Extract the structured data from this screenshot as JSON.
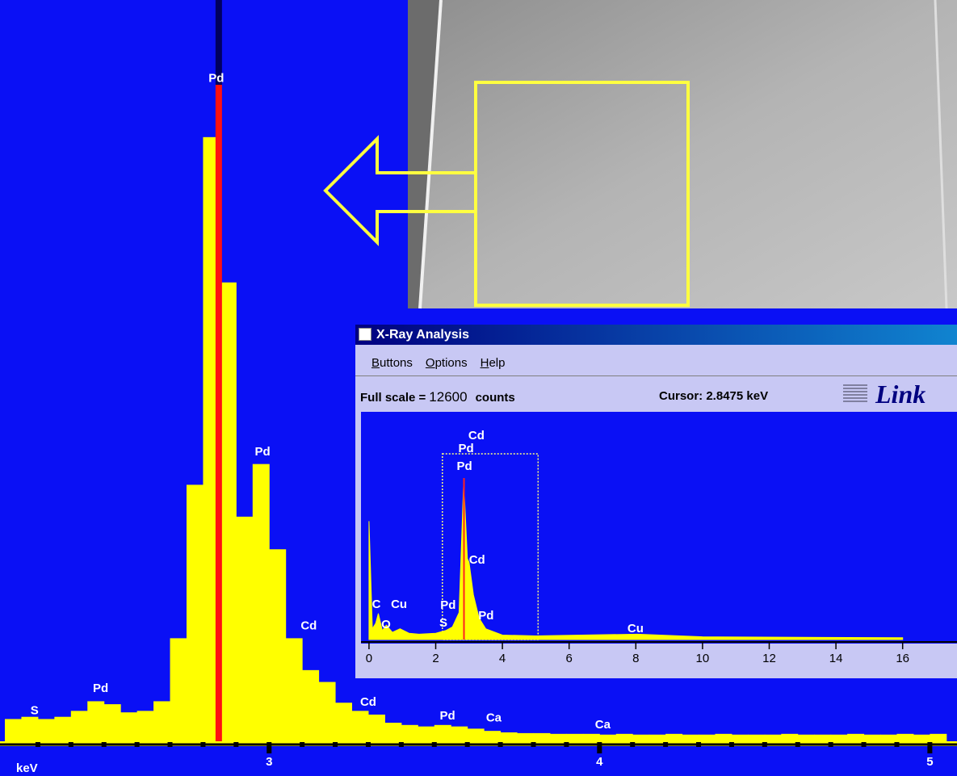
{
  "chart_data": [
    {
      "type": "histogram",
      "bins": [
        2.2,
        2.25,
        2.3,
        2.35,
        2.4,
        2.45,
        2.5,
        2.55,
        2.6,
        2.65,
        2.7,
        2.75,
        2.8,
        2.85,
        2.9,
        2.95,
        3,
        3.05,
        3.1,
        3.15,
        3.2,
        3.25,
        3.3,
        3.35,
        3.4,
        3.45,
        3.5,
        3.55,
        3.6,
        3.65,
        3.7,
        3.75,
        3.8,
        3.85,
        3.9,
        3.95,
        4,
        4.05,
        4.1,
        4.15,
        4.2,
        4.25,
        4.3,
        4.35,
        4.4,
        4.45,
        4.5,
        4.55,
        4.6,
        4.65,
        4.7,
        4.75,
        4.8,
        4.85,
        4.9,
        4.95,
        5,
        5.05
      ],
      "values": [
        3.0,
        3.3,
        3.0,
        3.3,
        4.1,
        5.4,
        5.0,
        3.9,
        4.1,
        5.4,
        13.9,
        34.6,
        81.5,
        61.9,
        30.3,
        37.4,
        25.9,
        13.9,
        9.6,
        8.0,
        5.2,
        4.1,
        3.6,
        2.5,
        2.2,
        2.0,
        2.2,
        2.0,
        1.7,
        1.4,
        1.2,
        1.1,
        1.1,
        1.0,
        1.0,
        1.0,
        0.9,
        1.0,
        0.9,
        0.9,
        1.0,
        0.9,
        0.9,
        1.0,
        0.9,
        0.9,
        0.9,
        1.0,
        0.9,
        0.9,
        0.9,
        1.0,
        0.9,
        0.9,
        1.0,
        0.9,
        1.0
      ],
      "color": "#ffff00",
      "xlim": [
        2.2,
        5.07
      ],
      "ylim": [
        0,
        100
      ],
      "xticks": [
        3,
        4,
        5
      ],
      "xminorticks": [
        2.3,
        2.4,
        2.5,
        2.6,
        2.7,
        2.8,
        2.9,
        3.1,
        3.2,
        3.3,
        3.4,
        3.5,
        3.6,
        3.7,
        3.8,
        3.9,
        4.1,
        4.2,
        4.3,
        4.4,
        4.5,
        4.6,
        4.7,
        4.8,
        4.9
      ],
      "xlabel": "keV",
      "annotations": [
        {
          "text": "S",
          "x": 2.29,
          "y": 4.1
        },
        {
          "text": "Pd",
          "x": 2.49,
          "y": 7.1
        },
        {
          "text": "Pd",
          "x": 2.84,
          "y": 89.4
        },
        {
          "text": "Pd",
          "x": 2.98,
          "y": 39.0
        },
        {
          "text": "Cd",
          "x": 3.12,
          "y": 15.5
        },
        {
          "text": "Cd",
          "x": 3.3,
          "y": 5.2
        },
        {
          "text": "Pd",
          "x": 3.54,
          "y": 3.4
        },
        {
          "text": "Ca",
          "x": 3.68,
          "y": 3.1
        },
        {
          "text": "Ca",
          "x": 4.01,
          "y": 2.2
        }
      ]
    },
    {
      "type": "area",
      "x": [
        0,
        0.1,
        0.2,
        0.28,
        0.4,
        0.52,
        0.7,
        0.93,
        1.2,
        1.5,
        2,
        2.3,
        2.5,
        2.7,
        2.84,
        2.95,
        3,
        3.13,
        3.3,
        3.5,
        4,
        5,
        8.05,
        10,
        16
      ],
      "values": [
        6600,
        600,
        900,
        1450,
        500,
        800,
        400,
        600,
        350,
        300,
        350,
        500,
        700,
        1500,
        8800,
        4500,
        4300,
        2500,
        1200,
        600,
        250,
        200,
        300,
        150,
        100
      ],
      "color": "#ffff00",
      "xlim": [
        -0.24,
        17.63
      ],
      "ylim": [
        0,
        12600
      ],
      "xticks": [
        0,
        2,
        4,
        6,
        8,
        10,
        12,
        14,
        16
      ],
      "y_unit": "counts",
      "annotations": [
        {
          "text": "Cd",
          "x": 3.22,
          "y": 11340
        },
        {
          "text": "Pd",
          "x": 2.91,
          "y": 10620
        },
        {
          "text": "Pd",
          "x": 2.86,
          "y": 9630
        },
        {
          "text": "Cd",
          "x": 3.24,
          "y": 4410
        },
        {
          "text": "C",
          "x": 0.22,
          "y": 1935
        },
        {
          "text": "Cu",
          "x": 0.9,
          "y": 1935
        },
        {
          "text": "O",
          "x": 0.51,
          "y": 810
        },
        {
          "text": "Pd",
          "x": 2.37,
          "y": 1890
        },
        {
          "text": "S",
          "x": 2.23,
          "y": 900
        },
        {
          "text": "Pd",
          "x": 3.51,
          "y": 1305
        },
        {
          "text": "Cu",
          "x": 7.99,
          "y": 585
        }
      ]
    }
  ],
  "window": {
    "title": "X-Ray Analysis",
    "menu": [
      "Buttons",
      "Options",
      "Help"
    ],
    "full_scale_label": "Full scale =",
    "cursor_label": "Cursor:",
    "cursor": {
      "value": 2.8475,
      "label": "2.8475 keV"
    },
    "logo": "Link"
  }
}
